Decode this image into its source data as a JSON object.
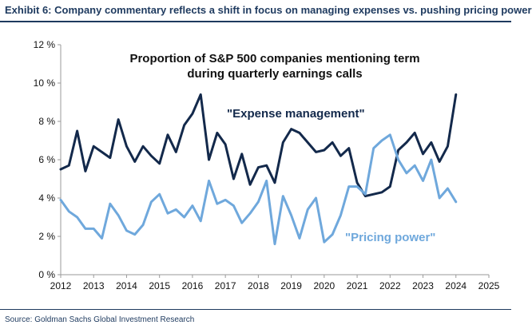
{
  "header": {
    "exhibit_title": "Exhibit 6: Company commentary reflects a shift in focus on managing expenses vs. pushing pricing power"
  },
  "footer": {
    "source": "Source: Goldman Sachs Global Investment Research"
  },
  "colors": {
    "expense": "#13294b",
    "pricing": "#6fa8dc",
    "axis": "#9a9a9a",
    "title_accent": "#1e3a5f"
  },
  "chart_data": {
    "type": "line",
    "title_lines": [
      "Proportion of S&P 500 companies mentioning term",
      "during quarterly earnings calls"
    ],
    "xlabel": "",
    "ylabel": "",
    "xlim": [
      2012,
      2025
    ],
    "ylim": [
      0,
      12
    ],
    "grid": false,
    "x_ticks": [
      2012,
      2013,
      2014,
      2015,
      2016,
      2017,
      2018,
      2019,
      2020,
      2021,
      2022,
      2023,
      2024,
      2025
    ],
    "x_tick_labels": [
      "2012",
      "2013",
      "2014",
      "2015",
      "2016",
      "2017",
      "2018",
      "2019",
      "2020",
      "2021",
      "2022",
      "2023",
      "2024",
      "2025"
    ],
    "y_ticks": [
      0,
      2,
      4,
      6,
      8,
      10,
      12
    ],
    "y_tick_labels": [
      "0 %",
      "2 %",
      "4 %",
      "6 %",
      "8 %",
      "10 %",
      "12 %"
    ],
    "x": [
      2012.0,
      2012.25,
      2012.5,
      2012.75,
      2013.0,
      2013.25,
      2013.5,
      2013.75,
      2014.0,
      2014.25,
      2014.5,
      2014.75,
      2015.0,
      2015.25,
      2015.5,
      2015.75,
      2016.0,
      2016.25,
      2016.5,
      2016.75,
      2017.0,
      2017.25,
      2017.5,
      2017.75,
      2018.0,
      2018.25,
      2018.5,
      2018.75,
      2019.0,
      2019.25,
      2019.5,
      2019.75,
      2020.0,
      2020.25,
      2020.5,
      2020.75,
      2021.0,
      2021.25,
      2021.5,
      2021.75,
      2022.0,
      2022.25,
      2022.5,
      2022.75,
      2023.0,
      2023.25,
      2023.5,
      2023.75,
      2024.0
    ],
    "series": [
      {
        "name": "\"Expense management\"",
        "values": [
          5.5,
          5.7,
          7.5,
          5.4,
          6.7,
          6.4,
          6.1,
          8.1,
          6.7,
          5.9,
          6.7,
          6.2,
          5.8,
          7.3,
          6.4,
          7.8,
          8.4,
          9.4,
          6.0,
          7.4,
          6.8,
          5.0,
          6.3,
          4.7,
          5.6,
          5.7,
          4.8,
          6.9,
          7.6,
          7.4,
          6.9,
          6.4,
          6.5,
          6.9,
          6.2,
          6.6,
          4.8,
          4.1,
          4.2,
          4.3,
          4.6,
          6.5,
          6.9,
          7.4,
          6.3,
          6.9,
          5.9,
          6.7,
          9.4
        ]
      },
      {
        "name": "\"Pricing power\"",
        "values": [
          3.9,
          3.3,
          3.0,
          2.4,
          2.4,
          1.9,
          3.7,
          3.1,
          2.3,
          2.1,
          2.6,
          3.8,
          4.2,
          3.2,
          3.4,
          3.0,
          3.6,
          2.8,
          4.9,
          3.7,
          3.9,
          3.6,
          2.7,
          3.2,
          3.8,
          4.9,
          1.6,
          4.1,
          3.1,
          1.9,
          3.4,
          4.0,
          1.7,
          2.1,
          3.1,
          4.6,
          4.6,
          4.2,
          6.6,
          7.0,
          7.3,
          6.0,
          5.3,
          5.7,
          4.9,
          6.0,
          4.0,
          4.5,
          3.8
        ]
      }
    ],
    "series_labels": [
      "\"Expense management\"",
      "\"Pricing power\""
    ],
    "legend": "inline labels inside plot"
  }
}
